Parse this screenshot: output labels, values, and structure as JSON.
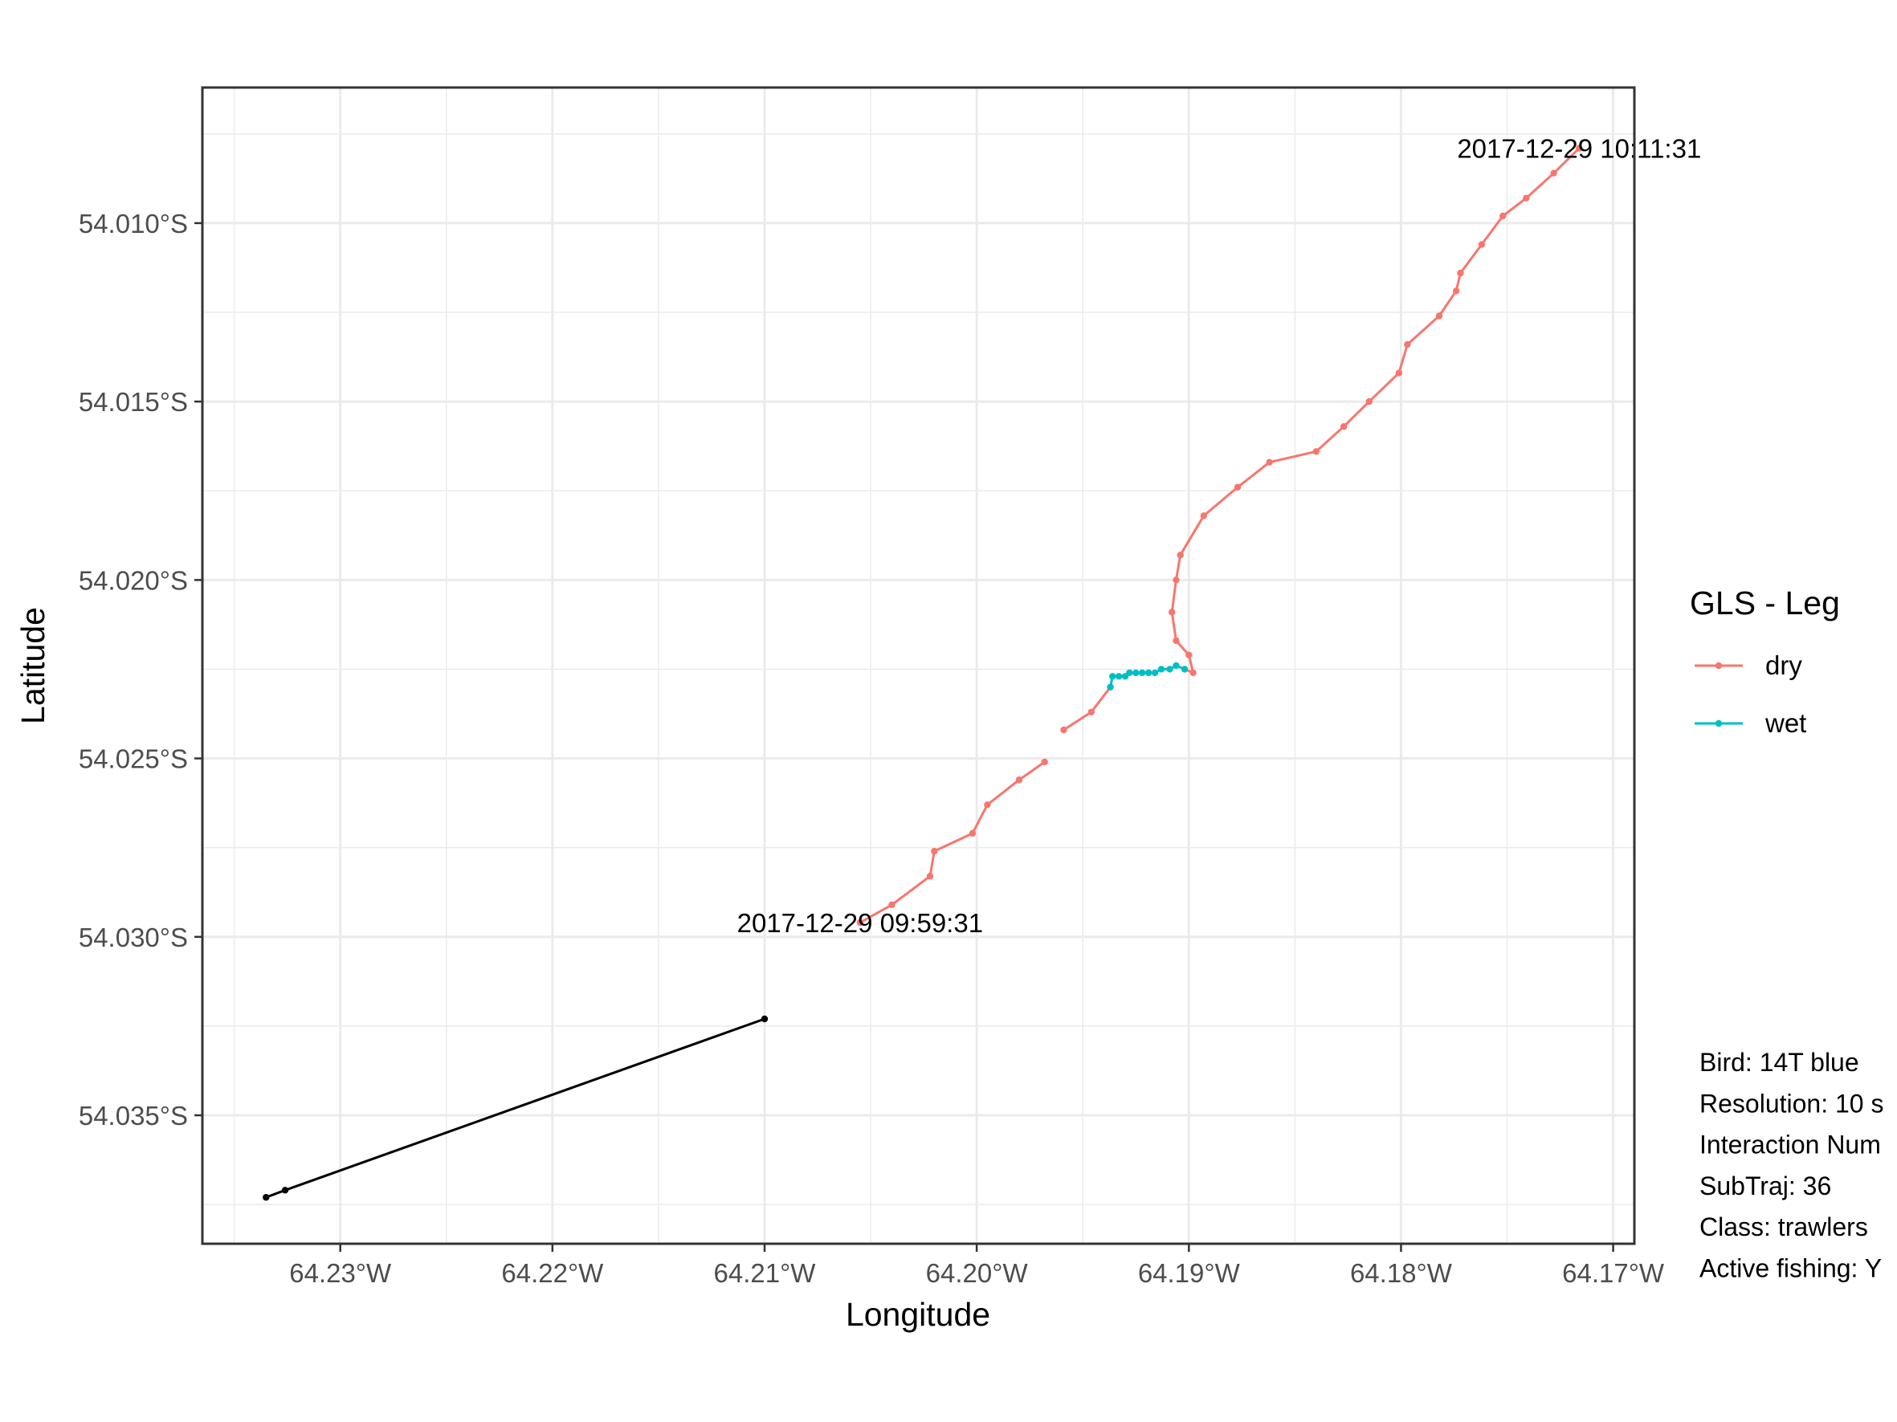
{
  "chart_data": {
    "type": "line",
    "xlabel": "Longitude",
    "ylabel": "Latitude",
    "x_ticks": [
      "64.23°W",
      "64.22°W",
      "64.21°W",
      "64.20°W",
      "64.19°W",
      "64.18°W",
      "64.17°W"
    ],
    "y_ticks": [
      "54.010°S",
      "54.015°S",
      "54.020°S",
      "54.025°S",
      "54.030°S",
      "54.035°S"
    ],
    "x_tick_values": [
      -64.23,
      -64.22,
      -64.21,
      -64.2,
      -64.19,
      -64.18,
      -64.17
    ],
    "y_tick_values": [
      -54.01,
      -54.015,
      -54.02,
      -54.025,
      -54.03,
      -54.035
    ],
    "xlim": [
      -64.2365,
      -64.169
    ],
    "ylim": [
      -54.0386,
      -54.0062
    ],
    "grid": true,
    "legend": {
      "title": "GLS - Leg",
      "position": "right",
      "entries": [
        {
          "label": "dry",
          "color": "#F8766D"
        },
        {
          "label": "wet",
          "color": "#00BFC4"
        }
      ]
    },
    "series": [
      {
        "name": "dry",
        "color": "#F8766D",
        "segments": [
          [
            [
              -64.2055,
              -54.0296
            ],
            [
              -64.204,
              -54.0291
            ],
            [
              -64.2022,
              -54.0283
            ],
            [
              -64.202,
              -54.0276
            ],
            [
              -64.2002,
              -54.0271
            ],
            [
              -64.1995,
              -54.0263
            ],
            [
              -64.198,
              -54.0256
            ],
            [
              -64.1968,
              -54.0251
            ]
          ],
          [
            [
              -64.1959,
              -54.0242
            ],
            [
              -64.1946,
              -54.0237
            ],
            [
              -64.1937,
              -54.023
            ]
          ],
          [
            [
              -64.1902,
              -54.0225
            ],
            [
              -64.1898,
              -54.0226
            ],
            [
              -64.19,
              -54.0221
            ],
            [
              -64.1906,
              -54.0217
            ],
            [
              -64.1908,
              -54.0209
            ],
            [
              -64.1906,
              -54.02
            ],
            [
              -64.1904,
              -54.0193
            ],
            [
              -64.1893,
              -54.0182
            ],
            [
              -64.1877,
              -54.0174
            ],
            [
              -64.1862,
              -54.0167
            ],
            [
              -64.184,
              -54.0164
            ],
            [
              -64.1827,
              -54.0157
            ],
            [
              -64.1815,
              -54.015
            ],
            [
              -64.1801,
              -54.0142
            ],
            [
              -64.1797,
              -54.0134
            ],
            [
              -64.1782,
              -54.0126
            ],
            [
              -64.1774,
              -54.0119
            ],
            [
              -64.1772,
              -54.0114
            ],
            [
              -64.1762,
              -54.0106
            ],
            [
              -64.1752,
              -54.0098
            ],
            [
              -64.1741,
              -54.0093
            ],
            [
              -64.1728,
              -54.0086
            ],
            [
              -64.1716,
              -54.0079
            ]
          ]
        ]
      },
      {
        "name": "wet",
        "color": "#00BFC4",
        "segments": [
          [
            [
              -64.1937,
              -54.023
            ],
            [
              -64.1936,
              -54.0227
            ],
            [
              -64.1933,
              -54.0227
            ],
            [
              -64.193,
              -54.0227
            ],
            [
              -64.1928,
              -54.0226
            ],
            [
              -64.1925,
              -54.0226
            ],
            [
              -64.1922,
              -54.0226
            ],
            [
              -64.1919,
              -54.0226
            ],
            [
              -64.1916,
              -54.0226
            ],
            [
              -64.1913,
              -54.0225
            ],
            [
              -64.1909,
              -54.0225
            ],
            [
              -64.1906,
              -54.0224
            ],
            [
              -64.1902,
              -54.0225
            ]
          ]
        ]
      },
      {
        "color": "#000000",
        "segments": [
          [
            [
              -64.2335,
              -54.0373
            ],
            [
              -64.2326,
              -54.0371
            ],
            [
              -64.21,
              -54.0323
            ]
          ]
        ]
      }
    ],
    "annotations": [
      {
        "text": "2017-12-29 10:11:31",
        "x": -64.1716,
        "y": -54.0079
      },
      {
        "text": "2017-12-29 09:59:31",
        "x": -64.2055,
        "y": -54.0296
      }
    ],
    "caption_lines": [
      "Bird: 14T blue",
      "Resolution: 10 s",
      "Interaction Num",
      "SubTraj: 36",
      "Class: trawlers",
      "Active fishing: Y"
    ]
  }
}
